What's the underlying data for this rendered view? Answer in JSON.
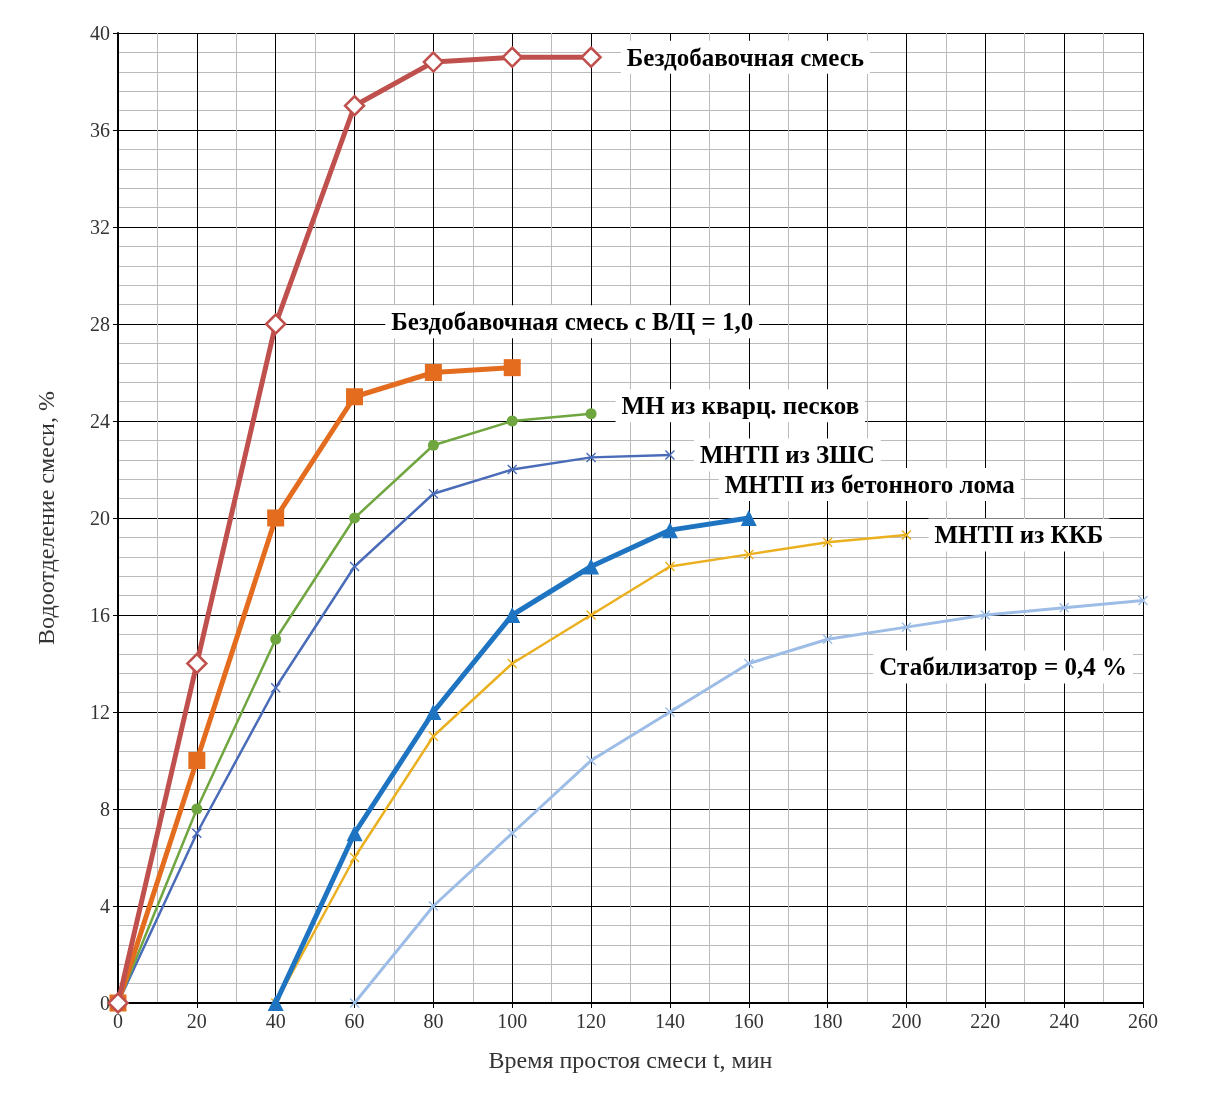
{
  "chart_data": {
    "type": "line",
    "xlabel": "Время простоя смеси t, мин",
    "ylabel": "Водоотделение смеси, %",
    "xlim": [
      0,
      260
    ],
    "xticks": [
      0,
      20,
      40,
      60,
      80,
      100,
      120,
      140,
      160,
      180,
      200,
      220,
      240,
      260
    ],
    "ylim": [
      0,
      40
    ],
    "yticks": [
      0,
      4,
      8,
      12,
      16,
      20,
      24,
      28,
      32,
      36,
      40
    ],
    "grid": true,
    "legend": false,
    "series": [
      {
        "name": "Бездобавочная смесь",
        "color": "#c0504d",
        "marker": "diamond",
        "x": [
          0,
          20,
          40,
          60,
          80,
          100,
          120
        ],
        "values": [
          0,
          14,
          28,
          37,
          38.8,
          39,
          39
        ]
      },
      {
        "name": "Бездобавочная смесь с В/Ц = 1,0",
        "color": "#e46c1e",
        "marker": "square",
        "x": [
          0,
          20,
          40,
          60,
          80,
          100
        ],
        "values": [
          0,
          10,
          20,
          25,
          26,
          26.2
        ]
      },
      {
        "name": "МН из кварц. песков",
        "color": "#70a640",
        "marker": "circle",
        "x": [
          0,
          20,
          40,
          60,
          80,
          100,
          120
        ],
        "values": [
          0,
          8,
          15,
          20,
          23,
          24,
          24.3
        ]
      },
      {
        "name": "МНТП из ЗШС",
        "color": "#4a6cb8",
        "marker": "cross",
        "x": [
          0,
          20,
          40,
          60,
          80,
          100,
          120,
          140
        ],
        "values": [
          0,
          7,
          13,
          18,
          21,
          22,
          22.5,
          22.6
        ]
      },
      {
        "name": "МНТП из бетонного лома",
        "color": "#1f74c2",
        "marker": "triangle",
        "x": [
          40,
          60,
          80,
          100,
          120,
          140,
          160
        ],
        "values": [
          0,
          7,
          12,
          16,
          18,
          19.5,
          20
        ]
      },
      {
        "name": "МНТП из ККБ",
        "color": "#eab020",
        "marker": "cross",
        "x": [
          40,
          60,
          80,
          100,
          120,
          140,
          160,
          180,
          200
        ],
        "values": [
          0,
          6,
          11,
          14,
          16,
          18,
          18.5,
          19,
          19.3
        ]
      },
      {
        "name": "Стабилизатор = 0,4 %",
        "color": "#9dbde6",
        "marker": "cross",
        "x": [
          60,
          80,
          100,
          120,
          140,
          160,
          180,
          200,
          220,
          240,
          260
        ],
        "values": [
          0,
          4,
          7,
          10,
          12,
          14,
          15,
          15.5,
          16,
          16.3,
          16.6
        ]
      }
    ]
  }
}
